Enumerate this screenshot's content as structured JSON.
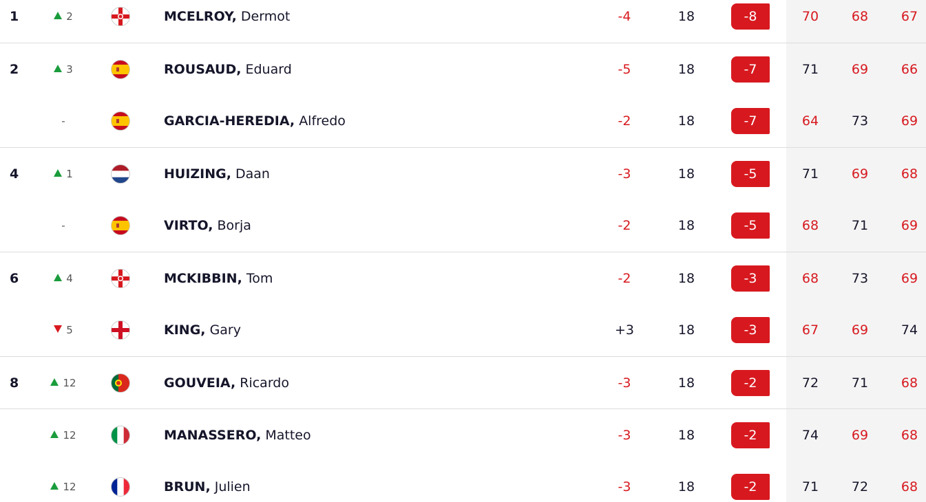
{
  "leaderboard": {
    "rows": [
      {
        "pos": "1",
        "move": "2",
        "move_dir": "up",
        "flag": "nir",
        "last": "MCELROY,",
        "first": "Dermot",
        "today": "-4",
        "thru": "18",
        "total": "-8",
        "rounds": [
          "70",
          "68",
          "67"
        ],
        "round_colors": [
          "red",
          "red",
          "red"
        ]
      },
      {
        "pos": "2",
        "move": "3",
        "move_dir": "up",
        "flag": "esp",
        "last": "ROUSAUD,",
        "first": "Eduard",
        "today": "-5",
        "thru": "18",
        "total": "-7",
        "rounds": [
          "71",
          "69",
          "66"
        ],
        "round_colors": [
          "black",
          "red",
          "red"
        ]
      },
      {
        "pos": null,
        "move": "-",
        "move_dir": "none",
        "flag": "esp",
        "last": "GARCIA-HEREDIA,",
        "first": "Alfredo",
        "today": "-2",
        "thru": "18",
        "total": "-7",
        "rounds": [
          "64",
          "73",
          "69"
        ],
        "round_colors": [
          "red",
          "black",
          "red"
        ]
      },
      {
        "pos": "4",
        "move": "1",
        "move_dir": "up",
        "flag": "ned",
        "last": "HUIZING,",
        "first": "Daan",
        "today": "-3",
        "thru": "18",
        "total": "-5",
        "rounds": [
          "71",
          "69",
          "68"
        ],
        "round_colors": [
          "black",
          "red",
          "red"
        ]
      },
      {
        "pos": null,
        "move": "-",
        "move_dir": "none",
        "flag": "esp",
        "last": "VIRTO,",
        "first": "Borja",
        "today": "-2",
        "thru": "18",
        "total": "-5",
        "rounds": [
          "68",
          "71",
          "69"
        ],
        "round_colors": [
          "red",
          "black",
          "red"
        ]
      },
      {
        "pos": "6",
        "move": "4",
        "move_dir": "up",
        "flag": "nir",
        "last": "MCKIBBIN,",
        "first": "Tom",
        "today": "-2",
        "thru": "18",
        "total": "-3",
        "rounds": [
          "68",
          "73",
          "69"
        ],
        "round_colors": [
          "red",
          "black",
          "red"
        ]
      },
      {
        "pos": null,
        "move": "5",
        "move_dir": "down",
        "flag": "eng",
        "last": "KING,",
        "first": "Gary",
        "today": "+3",
        "thru": "18",
        "total": "-3",
        "rounds": [
          "67",
          "69",
          "74"
        ],
        "round_colors": [
          "red",
          "red",
          "black"
        ]
      },
      {
        "pos": "8",
        "move": "12",
        "move_dir": "up",
        "flag": "por",
        "last": "GOUVEIA,",
        "first": "Ricardo",
        "today": "-3",
        "thru": "18",
        "total": "-2",
        "rounds": [
          "72",
          "71",
          "68"
        ],
        "round_colors": [
          "black",
          "black",
          "red"
        ]
      },
      {
        "pos": null,
        "move": "12",
        "move_dir": "up",
        "flag": "ita",
        "last": "MANASSERO,",
        "first": "Matteo",
        "today": "-3",
        "thru": "18",
        "total": "-2",
        "rounds": [
          "74",
          "69",
          "68"
        ],
        "round_colors": [
          "black",
          "red",
          "red"
        ]
      },
      {
        "pos": null,
        "move": "12",
        "move_dir": "up",
        "flag": "fra",
        "last": "BRUN,",
        "first": "Julien",
        "today": "-3",
        "thru": "18",
        "total": "-2",
        "rounds": [
          "71",
          "72",
          "68"
        ],
        "round_colors": [
          "black",
          "black",
          "red"
        ]
      }
    ]
  }
}
